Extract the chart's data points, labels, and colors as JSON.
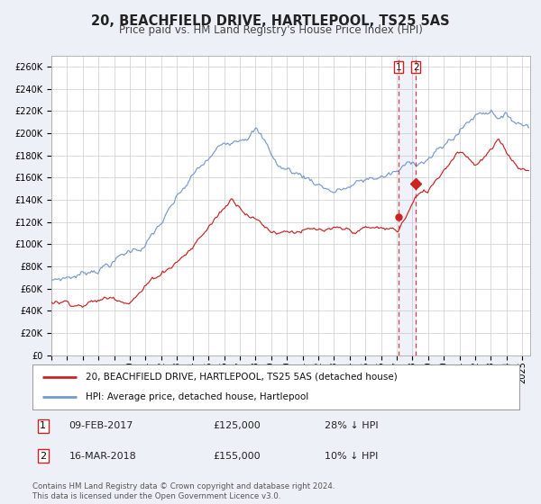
{
  "title": "20, BEACHFIELD DRIVE, HARTLEPOOL, TS25 5AS",
  "subtitle": "Price paid vs. HM Land Registry's House Price Index (HPI)",
  "ylabel_ticks": [
    "£0",
    "£20K",
    "£40K",
    "£60K",
    "£80K",
    "£100K",
    "£120K",
    "£140K",
    "£160K",
    "£180K",
    "£200K",
    "£220K",
    "£240K",
    "£260K"
  ],
  "ytick_values": [
    0,
    20000,
    40000,
    60000,
    80000,
    100000,
    120000,
    140000,
    160000,
    180000,
    200000,
    220000,
    240000,
    260000
  ],
  "ylim": [
    0,
    270000
  ],
  "xlim_start": 1995.0,
  "xlim_end": 2025.5,
  "hpi_color": "#7799cc",
  "price_color": "#cc2222",
  "sale1_x": 2017.1,
  "sale1_y": 125000,
  "sale2_x": 2018.21,
  "sale2_y": 155000,
  "legend_line1": "20, BEACHFIELD DRIVE, HARTLEPOOL, TS25 5AS (detached house)",
  "legend_line2": "HPI: Average price, detached house, Hartlepool",
  "note1_box": "1",
  "note1_date": "09-FEB-2017",
  "note1_price": "£125,000",
  "note1_pct": "28% ↓ HPI",
  "note2_box": "2",
  "note2_date": "16-MAR-2018",
  "note2_price": "£155,000",
  "note2_pct": "10% ↓ HPI",
  "footer1": "Contains HM Land Registry data © Crown copyright and database right 2024.",
  "footer2": "This data is licensed under the Open Government Licence v3.0.",
  "background_color": "#eef0f8",
  "plot_bg_color": "#ffffff",
  "grid_color": "#cccccc",
  "span_color": "#aabbdd"
}
